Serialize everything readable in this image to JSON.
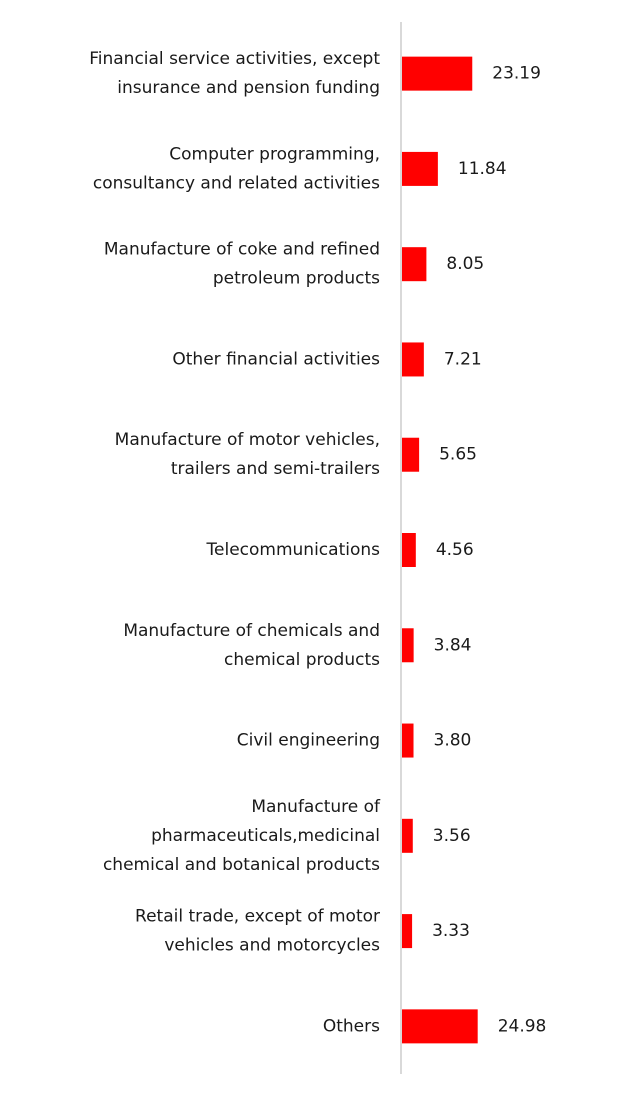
{
  "colors": {
    "bar": "#ff0000",
    "axis": "#d9d9d9",
    "text": "#1a1a1a"
  },
  "chart_data": {
    "type": "bar",
    "orientation": "horizontal",
    "title": "",
    "xlabel": "",
    "ylabel": "",
    "grid": false,
    "legend": "none",
    "xlim": [
      0,
      100
    ],
    "categories": [
      [
        "Financial service activities, except",
        "insurance and pension funding"
      ],
      [
        "Computer programming,",
        "consultancy and related activities"
      ],
      [
        "Manufacture of coke and refined",
        "petroleum products"
      ],
      [
        "Other financial activities"
      ],
      [
        "Manufacture of motor vehicles,",
        "trailers and semi-trailers"
      ],
      [
        "Telecommunications"
      ],
      [
        "Manufacture of chemicals and",
        "chemical products"
      ],
      [
        "Civil engineering"
      ],
      [
        "Manufacture of",
        "pharmaceuticals,medicinal",
        "chemical and botanical products"
      ],
      [
        "Retail trade, except of motor",
        "vehicles and motorcycles"
      ],
      [
        "Others"
      ]
    ],
    "values": [
      23.19,
      11.84,
      8.05,
      7.21,
      5.65,
      4.56,
      3.84,
      3.8,
      3.56,
      3.33,
      24.98
    ],
    "value_labels": [
      "23.19",
      "11.84",
      "8.05",
      "7.21",
      "5.65",
      "4.56",
      "3.84",
      "3.80",
      "3.56",
      "3.33",
      "24.98"
    ]
  }
}
